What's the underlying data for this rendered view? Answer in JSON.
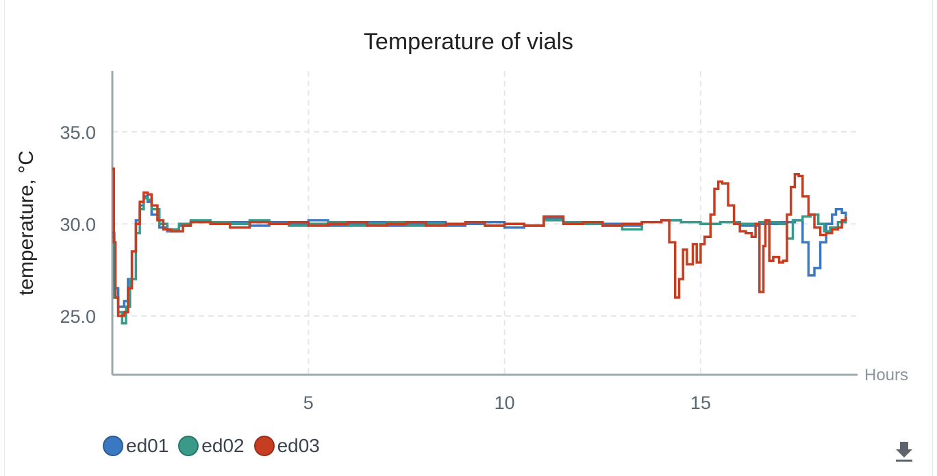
{
  "chart_data": {
    "type": "line",
    "title": "Temperature of vials",
    "xlabel": "Hours",
    "ylabel": "temperature, °C",
    "xlim": [
      0,
      19
    ],
    "ylim": [
      21.8,
      38.3
    ],
    "xticks": [
      5,
      10,
      15
    ],
    "xtick_labels": [
      "5",
      "10",
      "15"
    ],
    "yticks": [
      25.0,
      30.0,
      35.0
    ],
    "ytick_labels": [
      "25.0",
      "30.0",
      "35.0"
    ],
    "grid": true,
    "legend_position": "bottom-left",
    "step": true,
    "series": [
      {
        "name": "ed01",
        "color": "#3b78c2",
        "points": [
          [
            0,
            29.5
          ],
          [
            0.05,
            26.5
          ],
          [
            0.15,
            25.5
          ],
          [
            0.3,
            25.8
          ],
          [
            0.4,
            27.0
          ],
          [
            0.5,
            28.5
          ],
          [
            0.6,
            30.2
          ],
          [
            0.7,
            31.0
          ],
          [
            0.8,
            31.5
          ],
          [
            0.9,
            31.2
          ],
          [
            1.0,
            30.5
          ],
          [
            1.2,
            29.8
          ],
          [
            1.4,
            29.6
          ],
          [
            1.7,
            29.9
          ],
          [
            2.0,
            30.1
          ],
          [
            2.5,
            30.0
          ],
          [
            3.0,
            30.1
          ],
          [
            3.5,
            29.9
          ],
          [
            4.0,
            30.1
          ],
          [
            4.5,
            30.0
          ],
          [
            5.0,
            30.2
          ],
          [
            5.5,
            29.9
          ],
          [
            6.0,
            30.0
          ],
          [
            6.5,
            30.1
          ],
          [
            7.0,
            29.9
          ],
          [
            7.5,
            30.0
          ],
          [
            8.0,
            30.1
          ],
          [
            8.5,
            29.9
          ],
          [
            9.0,
            30.0
          ],
          [
            9.5,
            30.1
          ],
          [
            10.0,
            29.8
          ],
          [
            10.5,
            29.9
          ],
          [
            11.0,
            30.3
          ],
          [
            11.5,
            30.0
          ],
          [
            12.0,
            30.1
          ],
          [
            12.5,
            30.0
          ],
          [
            13.0,
            29.9
          ],
          [
            13.5,
            30.1
          ],
          [
            14.0,
            30.2
          ],
          [
            14.5,
            30.1
          ],
          [
            15.0,
            30.0
          ],
          [
            15.5,
            30.1
          ],
          [
            16.0,
            29.9
          ],
          [
            16.5,
            30.0
          ],
          [
            17.0,
            30.1
          ],
          [
            17.4,
            30.2
          ],
          [
            17.6,
            29.0
          ],
          [
            17.75,
            27.2
          ],
          [
            17.9,
            27.6
          ],
          [
            18.05,
            29.0
          ],
          [
            18.2,
            30.0
          ],
          [
            18.35,
            30.5
          ],
          [
            18.45,
            30.8
          ],
          [
            18.6,
            30.6
          ],
          [
            18.7,
            30.4
          ]
        ]
      },
      {
        "name": "ed02",
        "color": "#3a9a8a",
        "points": [
          [
            0,
            29.3
          ],
          [
            0.05,
            26.0
          ],
          [
            0.15,
            25.2
          ],
          [
            0.25,
            24.6
          ],
          [
            0.35,
            25.5
          ],
          [
            0.45,
            27.0
          ],
          [
            0.6,
            29.5
          ],
          [
            0.7,
            30.8
          ],
          [
            0.8,
            31.4
          ],
          [
            0.9,
            31.3
          ],
          [
            1.0,
            30.8
          ],
          [
            1.2,
            30.0
          ],
          [
            1.4,
            29.7
          ],
          [
            1.7,
            30.0
          ],
          [
            2.0,
            30.2
          ],
          [
            2.5,
            30.1
          ],
          [
            3.0,
            30.0
          ],
          [
            3.5,
            30.2
          ],
          [
            4.0,
            30.0
          ],
          [
            4.5,
            29.9
          ],
          [
            5.0,
            30.0
          ],
          [
            5.5,
            30.1
          ],
          [
            6.0,
            29.9
          ],
          [
            6.5,
            30.0
          ],
          [
            7.0,
            30.1
          ],
          [
            7.5,
            29.9
          ],
          [
            8.0,
            30.0
          ],
          [
            8.5,
            30.0
          ],
          [
            9.0,
            30.1
          ],
          [
            9.5,
            29.9
          ],
          [
            10.0,
            30.0
          ],
          [
            10.5,
            29.9
          ],
          [
            11.0,
            30.2
          ],
          [
            11.5,
            30.1
          ],
          [
            12.0,
            30.0
          ],
          [
            12.5,
            29.9
          ],
          [
            13.0,
            29.7
          ],
          [
            13.5,
            30.1
          ],
          [
            14.0,
            30.2
          ],
          [
            14.5,
            30.1
          ],
          [
            15.0,
            30.0
          ],
          [
            15.5,
            30.1
          ],
          [
            16.0,
            30.0
          ],
          [
            16.5,
            30.1
          ],
          [
            17.0,
            30.0
          ],
          [
            17.2,
            29.2
          ],
          [
            17.35,
            30.2
          ],
          [
            17.6,
            30.4
          ],
          [
            17.8,
            30.5
          ],
          [
            18.0,
            30.0
          ],
          [
            18.15,
            29.6
          ],
          [
            18.3,
            29.8
          ],
          [
            18.5,
            30.1
          ],
          [
            18.7,
            30.3
          ]
        ]
      },
      {
        "name": "ed03",
        "color": "#c73d22",
        "points": [
          [
            0,
            33.0
          ],
          [
            0.04,
            29.0
          ],
          [
            0.08,
            26.0
          ],
          [
            0.15,
            25.0
          ],
          [
            0.3,
            25.2
          ],
          [
            0.4,
            26.5
          ],
          [
            0.5,
            28.5
          ],
          [
            0.6,
            30.0
          ],
          [
            0.7,
            31.2
          ],
          [
            0.8,
            31.7
          ],
          [
            0.9,
            31.6
          ],
          [
            1.0,
            31.0
          ],
          [
            1.15,
            30.2
          ],
          [
            1.3,
            29.7
          ],
          [
            1.5,
            29.6
          ],
          [
            1.8,
            29.9
          ],
          [
            2.0,
            30.1
          ],
          [
            2.5,
            30.0
          ],
          [
            3.0,
            29.8
          ],
          [
            3.5,
            30.1
          ],
          [
            4.0,
            30.0
          ],
          [
            4.5,
            30.1
          ],
          [
            5.0,
            29.9
          ],
          [
            5.5,
            30.0
          ],
          [
            6.0,
            30.1
          ],
          [
            6.5,
            29.9
          ],
          [
            7.0,
            30.0
          ],
          [
            7.5,
            30.1
          ],
          [
            8.0,
            29.9
          ],
          [
            8.5,
            30.0
          ],
          [
            9.0,
            30.1
          ],
          [
            9.5,
            29.9
          ],
          [
            10.0,
            30.0
          ],
          [
            10.5,
            29.9
          ],
          [
            11.0,
            30.4
          ],
          [
            11.5,
            30.0
          ],
          [
            12.0,
            30.1
          ],
          [
            12.5,
            29.9
          ],
          [
            13.0,
            30.0
          ],
          [
            13.5,
            30.1
          ],
          [
            14.0,
            30.2
          ],
          [
            14.2,
            29.0
          ],
          [
            14.35,
            26.0
          ],
          [
            14.45,
            27.0
          ],
          [
            14.55,
            28.6
          ],
          [
            14.65,
            27.8
          ],
          [
            14.8,
            28.9
          ],
          [
            14.9,
            27.9
          ],
          [
            15.0,
            28.9
          ],
          [
            15.1,
            29.3
          ],
          [
            15.25,
            30.5
          ],
          [
            15.35,
            31.9
          ],
          [
            15.45,
            32.3
          ],
          [
            15.55,
            32.2
          ],
          [
            15.7,
            31.0
          ],
          [
            15.85,
            30.0
          ],
          [
            16.0,
            29.6
          ],
          [
            16.15,
            29.5
          ],
          [
            16.3,
            29.3
          ],
          [
            16.4,
            30.0
          ],
          [
            16.5,
            26.3
          ],
          [
            16.6,
            28.8
          ],
          [
            16.65,
            30.2
          ],
          [
            16.75,
            28.0
          ],
          [
            16.85,
            28.2
          ],
          [
            17.0,
            27.9
          ],
          [
            17.1,
            28.0
          ],
          [
            17.2,
            30.5
          ],
          [
            17.3,
            32.0
          ],
          [
            17.4,
            32.7
          ],
          [
            17.5,
            32.6
          ],
          [
            17.6,
            31.5
          ],
          [
            17.75,
            30.5
          ],
          [
            17.9,
            29.8
          ],
          [
            18.05,
            29.4
          ],
          [
            18.2,
            29.5
          ],
          [
            18.35,
            29.7
          ],
          [
            18.5,
            29.8
          ],
          [
            18.6,
            30.2
          ],
          [
            18.7,
            30.4
          ]
        ]
      }
    ]
  }
}
